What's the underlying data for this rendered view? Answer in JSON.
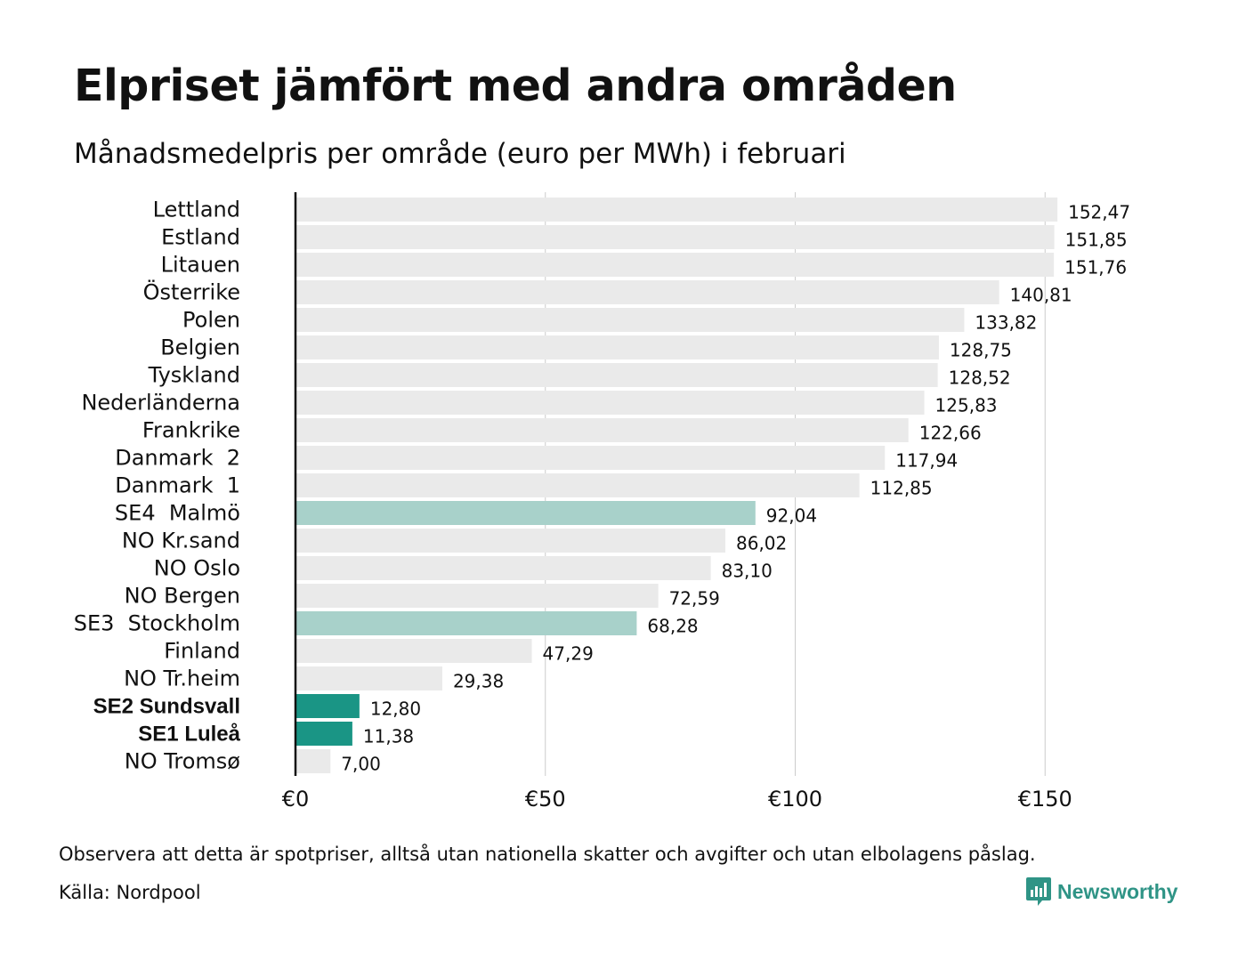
{
  "title": "Elpriset jämfört med andra områden",
  "subtitle": "Månadsmedelpris per område (euro per MWh) i februari",
  "footnote": "Observera att detta är spotpriser, alltså utan nationella skatter och avgifter och utan elbolagens påslag.",
  "source": "Källa: Nordpool",
  "brand": {
    "name": "Newsworthy",
    "icon": "newsworthy-logo-icon",
    "color": "#2f9486"
  },
  "colors": {
    "default_bar": "#eaeaea",
    "light_highlight": "#a8d1ca",
    "strong_highlight": "#1a9585",
    "axis": "#111111",
    "grid": "#cccccc"
  },
  "chart_data": {
    "type": "bar",
    "orientation": "horizontal",
    "categories": [
      "Lettland",
      "Estland",
      "Litauen",
      "Österrike",
      "Polen",
      "Belgien",
      "Tyskland",
      "Nederländerna",
      "Frankrike",
      "Danmark  2",
      "Danmark  1",
      "SE4  Malmö",
      "NO Kr.sand",
      "NO Oslo",
      "NO Bergen",
      "SE3  Stockholm",
      "Finland",
      "NO Tr.heim",
      "SE2 Sundsvall",
      "SE1 Luleå",
      "NO Tromsø"
    ],
    "values": [
      152.47,
      151.85,
      151.76,
      140.81,
      133.82,
      128.75,
      128.52,
      125.83,
      122.66,
      117.94,
      112.85,
      92.04,
      86.02,
      83.1,
      72.59,
      68.28,
      47.29,
      29.38,
      12.8,
      11.38,
      7.0
    ],
    "value_labels": [
      "152,47",
      "151,85",
      "151,76",
      "140,81",
      "133,82",
      "128,75",
      "128,52",
      "125,83",
      "122,66",
      "117,94",
      "112,85",
      "92,04",
      "86,02",
      "83,10",
      "72,59",
      "68,28",
      "47,29",
      "29,38",
      "12,80",
      "11,38",
      "7,00"
    ],
    "highlight": [
      "none",
      "none",
      "none",
      "none",
      "none",
      "none",
      "none",
      "none",
      "none",
      "none",
      "none",
      "light",
      "none",
      "none",
      "none",
      "light",
      "none",
      "none",
      "strong",
      "strong",
      "none"
    ],
    "bold_categories": [
      "SE2 Sundsvall",
      "SE1 Luleå"
    ],
    "x_ticks": [
      0,
      50,
      100,
      150
    ],
    "x_tick_labels": [
      "€0",
      "€50",
      "€100",
      "€150"
    ],
    "xlim": [
      0,
      160
    ],
    "grid": true
  }
}
